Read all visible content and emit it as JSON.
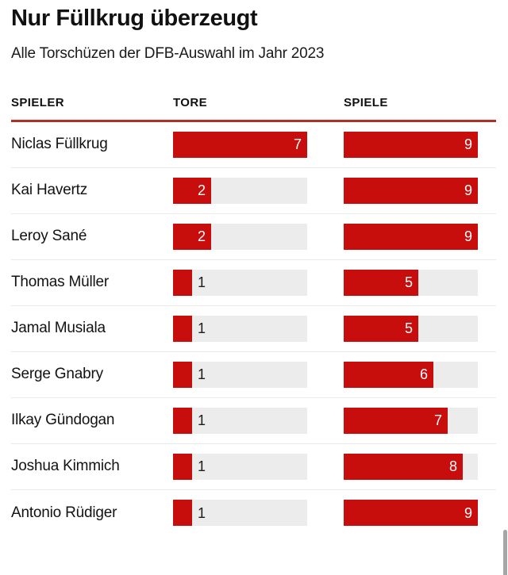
{
  "header": {
    "title": "Nur Füllkrug überzeugt",
    "subtitle": "Alle Torschüzen der DFB-Auswahl im Jahr 2023"
  },
  "table": {
    "columns": {
      "player": "Spieler",
      "goals": "Tore",
      "games": "Spiele"
    }
  },
  "chart_data": {
    "type": "bar",
    "orientation": "horizontal",
    "title": "Nur Füllkrug überzeugt",
    "subtitle": "Alle Torschüzen der DFB-Auswahl im Jahr 2023",
    "categories": [
      "Niclas Füllkrug",
      "Kai Havertz",
      "Leroy Sané",
      "Thomas Müller",
      "Jamal Musiala",
      "Serge Gnabry",
      "Ilkay Gündogan",
      "Joshua Kimmich",
      "Antonio Rüdiger"
    ],
    "series": [
      {
        "name": "Tore",
        "values": [
          7,
          2,
          2,
          1,
          1,
          1,
          1,
          1,
          1
        ],
        "axis_max": 7
      },
      {
        "name": "Spiele",
        "values": [
          9,
          9,
          9,
          5,
          5,
          6,
          7,
          8,
          9
        ],
        "axis_max": 9
      }
    ],
    "legend": "none",
    "grid": "off",
    "colors": {
      "bar_fill": "#c80d0d",
      "bar_track": "#ececec",
      "header_rule": "#b03124",
      "row_separator": "#e9e9e9",
      "label_inside": "#ffffff",
      "label_outside": "#1d1d1d"
    }
  }
}
